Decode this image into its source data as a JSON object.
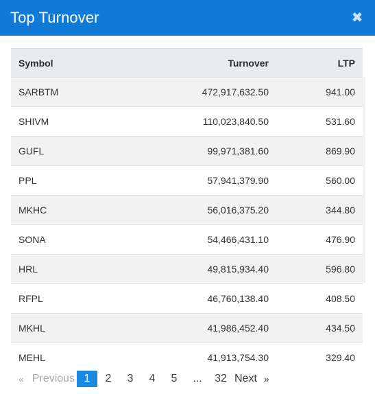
{
  "modal": {
    "title": "Top Turnover",
    "close_icon": "close-icon"
  },
  "table": {
    "headers": {
      "symbol": "Symbol",
      "turnover": "Turnover",
      "ltp": "LTP"
    },
    "rows": [
      {
        "symbol": "SARBTM",
        "turnover": "472,917,632.50",
        "ltp": "941.00"
      },
      {
        "symbol": "SHIVM",
        "turnover": "110,023,840.50",
        "ltp": "531.60"
      },
      {
        "symbol": "GUFL",
        "turnover": "99,971,381.60",
        "ltp": "869.90"
      },
      {
        "symbol": "PPL",
        "turnover": "57,941,379.90",
        "ltp": "560.00"
      },
      {
        "symbol": "MKHC",
        "turnover": "56,016,375.20",
        "ltp": "344.80"
      },
      {
        "symbol": "SONA",
        "turnover": "54,466,431.10",
        "ltp": "476.90"
      },
      {
        "symbol": "HRL",
        "turnover": "49,815,934.40",
        "ltp": "596.80"
      },
      {
        "symbol": "RFPL",
        "turnover": "46,760,138.40",
        "ltp": "408.50"
      },
      {
        "symbol": "MKHL",
        "turnover": "41,986,452.40",
        "ltp": "434.50"
      },
      {
        "symbol": "MEHL",
        "turnover": "41,913,754.30",
        "ltp": "329.40"
      }
    ]
  },
  "pagination": {
    "prev_arrow": "«",
    "prev_label": "Previous",
    "pages": [
      "1",
      "2",
      "3",
      "4",
      "5"
    ],
    "ellipsis": "...",
    "last_page": "32",
    "next_label": "Next",
    "next_arrow": "»",
    "active_page": "1"
  },
  "colors": {
    "header_bg": "#0f7ad8",
    "active_page_bg": "#1a8ae0"
  }
}
